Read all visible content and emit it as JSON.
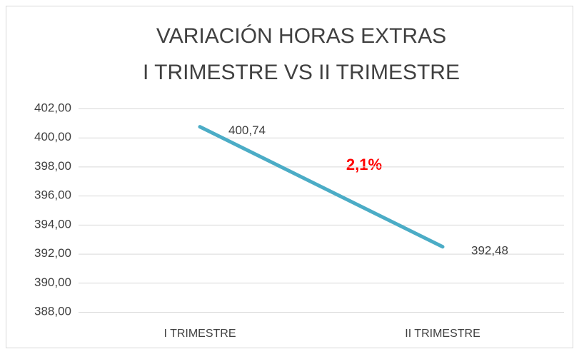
{
  "chart_data": {
    "type": "line",
    "title": [
      "VARIACIÓN HORAS EXTRAS",
      "I TRIMESTRE VS II TRIMESTRE"
    ],
    "categories": [
      "I TRIMESTRE",
      "II TRIMESTRE"
    ],
    "series": [
      {
        "name": "Horas extras",
        "color": "#4bacc6",
        "values": [
          400.74,
          392.48
        ],
        "value_labels": [
          "400,74",
          "392,48"
        ]
      }
    ],
    "annotation": "2,1%",
    "ylim": [
      388,
      402
    ],
    "yticks": [
      {
        "value": 388,
        "label": "388,00"
      },
      {
        "value": 390,
        "label": "390,00"
      },
      {
        "value": 392,
        "label": "392,00"
      },
      {
        "value": 394,
        "label": "394,00"
      },
      {
        "value": 396,
        "label": "396,00"
      },
      {
        "value": 398,
        "label": "398,00"
      },
      {
        "value": 400,
        "label": "400,00"
      },
      {
        "value": 402,
        "label": "402,00"
      }
    ],
    "grid": true
  }
}
